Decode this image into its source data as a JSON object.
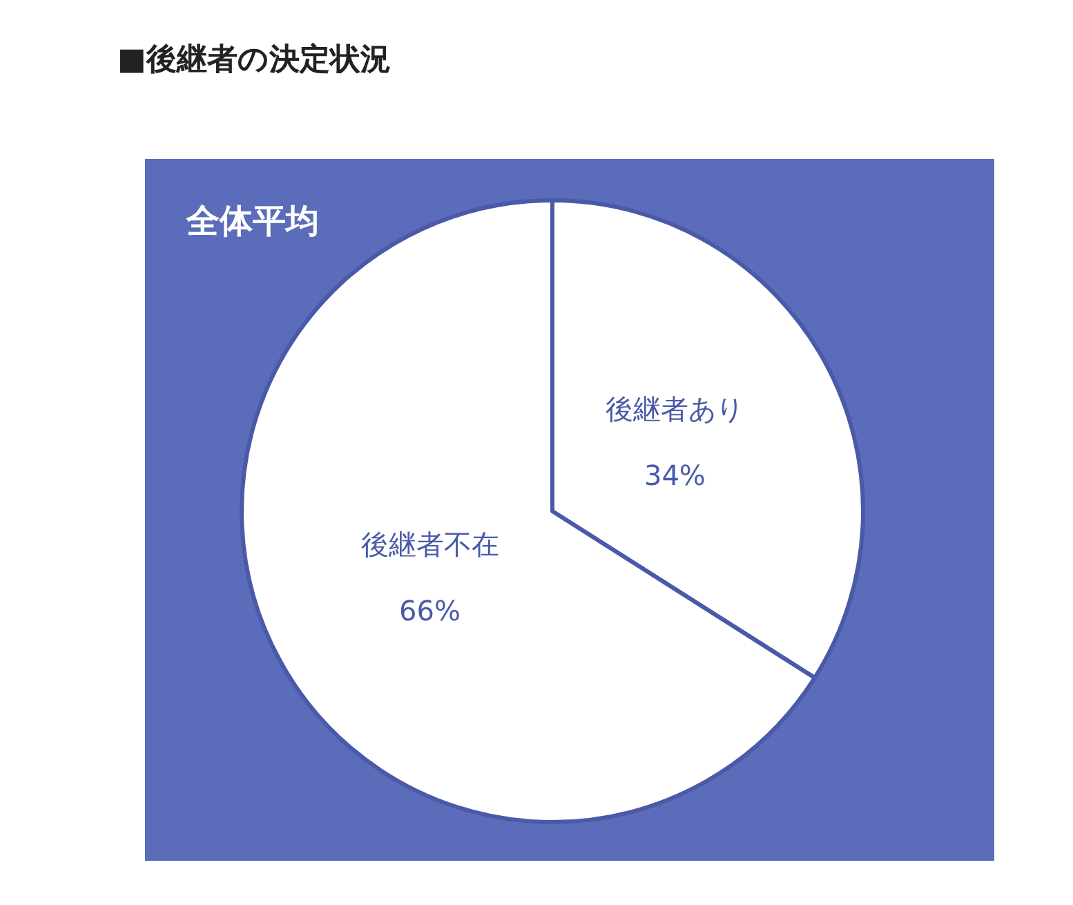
{
  "chart_data": {
    "type": "pie",
    "title": "■後継者の決定状況",
    "subtitle": "全体平均",
    "categories": [
      "後継者あり",
      "後継者不在"
    ],
    "values": [
      34,
      66
    ],
    "value_labels": [
      "34%",
      "66%"
    ],
    "colors": [
      "#ffffff",
      "#ffffff"
    ]
  }
}
